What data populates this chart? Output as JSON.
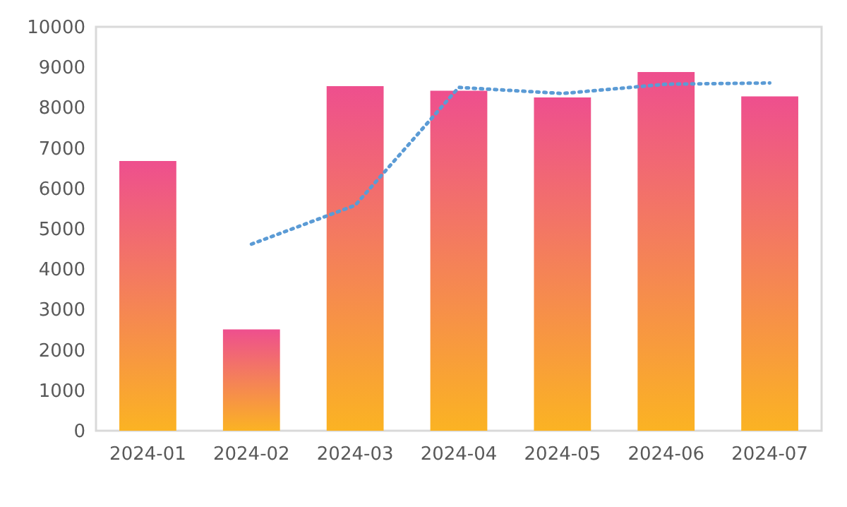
{
  "chart_data": {
    "type": "bar",
    "categories": [
      "2024-01",
      "2024-02",
      "2024-03",
      "2024-04",
      "2024-05",
      "2024-06",
      "2024-07"
    ],
    "series": [
      {
        "color": "#ee4f8e",
        "values": [
          6680,
          2510,
          8530,
          8420,
          8250,
          8880,
          8280
        ]
      },
      {
        "type": "line",
        "color": "#5b9bd5",
        "line_style": "dotted",
        "values": [
          null,
          4620,
          5580,
          8500,
          8350,
          8580,
          8610
        ]
      }
    ],
    "ylim": [
      0,
      10000
    ],
    "yticks": [
      0,
      1000,
      2000,
      3000,
      4000,
      5000,
      6000,
      7000,
      8000,
      9000,
      10000
    ],
    "grid": false
  }
}
